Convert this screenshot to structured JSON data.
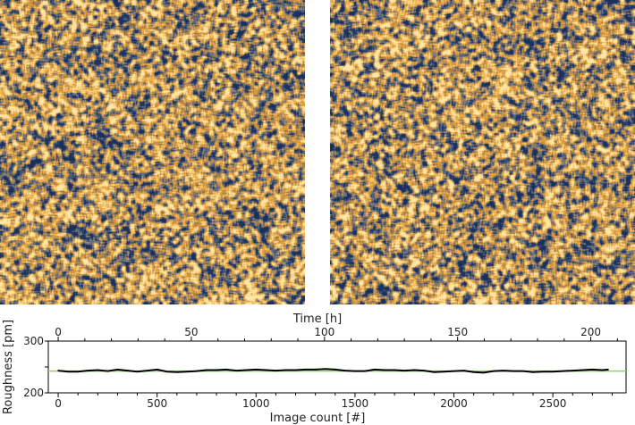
{
  "images": [
    {
      "name": "left-afm-image",
      "colormap": [
        "#1a2f5c",
        "#5a6f8a",
        "#c98a3a",
        "#f2b44c",
        "#fbe7a8"
      ]
    },
    {
      "name": "right-afm-image",
      "colormap": [
        "#1a2f5c",
        "#5a6f8a",
        "#c98a3a",
        "#f2b44c",
        "#fbe7a8"
      ]
    }
  ],
  "chart_data": {
    "type": "line",
    "xlabel": "Image count [#]",
    "x2label": "Time [h]",
    "ylabel": "Roughness [pm]",
    "xlim": [
      -50,
      2870
    ],
    "ylim": [
      200,
      300
    ],
    "xticks": [
      0,
      500,
      1000,
      1500,
      2000,
      2500
    ],
    "x2ticks": [
      0,
      50,
      100,
      150,
      200
    ],
    "x2_per_x": 0.0743,
    "yticks": [
      200,
      300
    ],
    "reference_line": {
      "y": 242,
      "color": "#8fd16a"
    },
    "series_color": "#000000",
    "series": [
      {
        "x": [
          0,
          50,
          100,
          150,
          200,
          250,
          300,
          350,
          400,
          450,
          500,
          550,
          600,
          650,
          700,
          750,
          800,
          850,
          900,
          950,
          1000,
          1050,
          1100,
          1150,
          1200,
          1250,
          1300,
          1350,
          1400,
          1450,
          1500,
          1550,
          1600,
          1650,
          1700,
          1750,
          1800,
          1850,
          1900,
          1950,
          2000,
          2050,
          2100,
          2150,
          2200,
          2250,
          2300,
          2350,
          2400,
          2450,
          2500,
          2550,
          2600,
          2650,
          2700,
          2750,
          2780
        ],
        "y": [
          243,
          241,
          241,
          243,
          244,
          242,
          245,
          243,
          241,
          243,
          245,
          241,
          240,
          241,
          242,
          244,
          244,
          245,
          243,
          244,
          245,
          244,
          243,
          244,
          244,
          245,
          245,
          246,
          245,
          243,
          242,
          242,
          245,
          244,
          244,
          243,
          244,
          243,
          240,
          241,
          242,
          243,
          240,
          239,
          242,
          243,
          242,
          242,
          240,
          241,
          241,
          242,
          243,
          244,
          245,
          244,
          245
        ]
      }
    ]
  }
}
